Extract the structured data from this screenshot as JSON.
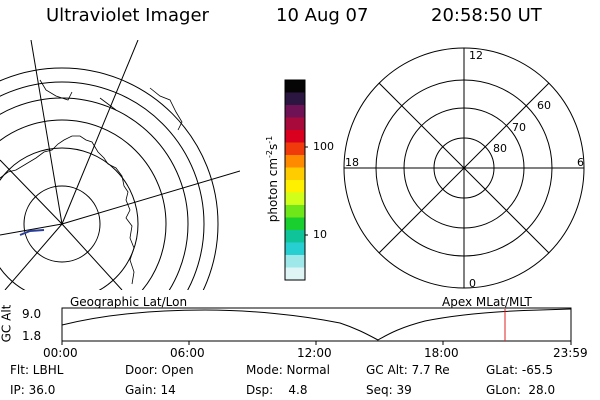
{
  "header": {
    "instrument": "Ultraviolet Imager",
    "date": "10 Aug 07",
    "time": "20:58:50 UT"
  },
  "geo_map": {
    "label": "Geographic Lat/Lon"
  },
  "colorbar": {
    "unit_prefix": "photon cm",
    "unit_exp1": "-2",
    "unit_s": "s",
    "unit_exp2": "-1",
    "tick_100": "100",
    "tick_10": "10",
    "colors": [
      "#050505",
      "#2a1640",
      "#6e1155",
      "#a80a3c",
      "#d9001f",
      "#f03a0c",
      "#ff8a00",
      "#ffcc00",
      "#fff000",
      "#cfff1a",
      "#6fe61a",
      "#19cf2f",
      "#10c49a",
      "#27cfd2",
      "#9ee8ea",
      "#dff4f4"
    ]
  },
  "polar_plot": {
    "label": "Apex MLat/MLT",
    "mlt_labels": {
      "top": "12",
      "left": "18",
      "right": "6",
      "bottom": "0"
    },
    "lat_labels": [
      "60",
      "70",
      "80"
    ]
  },
  "altitude_plot": {
    "ylabel": "GC Alt",
    "y_ticks": [
      "9.0",
      "1.8"
    ],
    "x_ticks": [
      "00:00",
      "06:00",
      "12:00",
      "18:00",
      "23:59"
    ]
  },
  "info": {
    "row1": [
      "Flt: LBHL",
      "Door: Open",
      "Mode: Normal",
      "GC Alt: 7.7 Re",
      "GLat: -65.5"
    ],
    "row2": [
      "IP: 36.0",
      "Gain: 14",
      "Dsp:    4.8",
      "Seq: 39",
      "GLon:  28.0"
    ]
  }
}
